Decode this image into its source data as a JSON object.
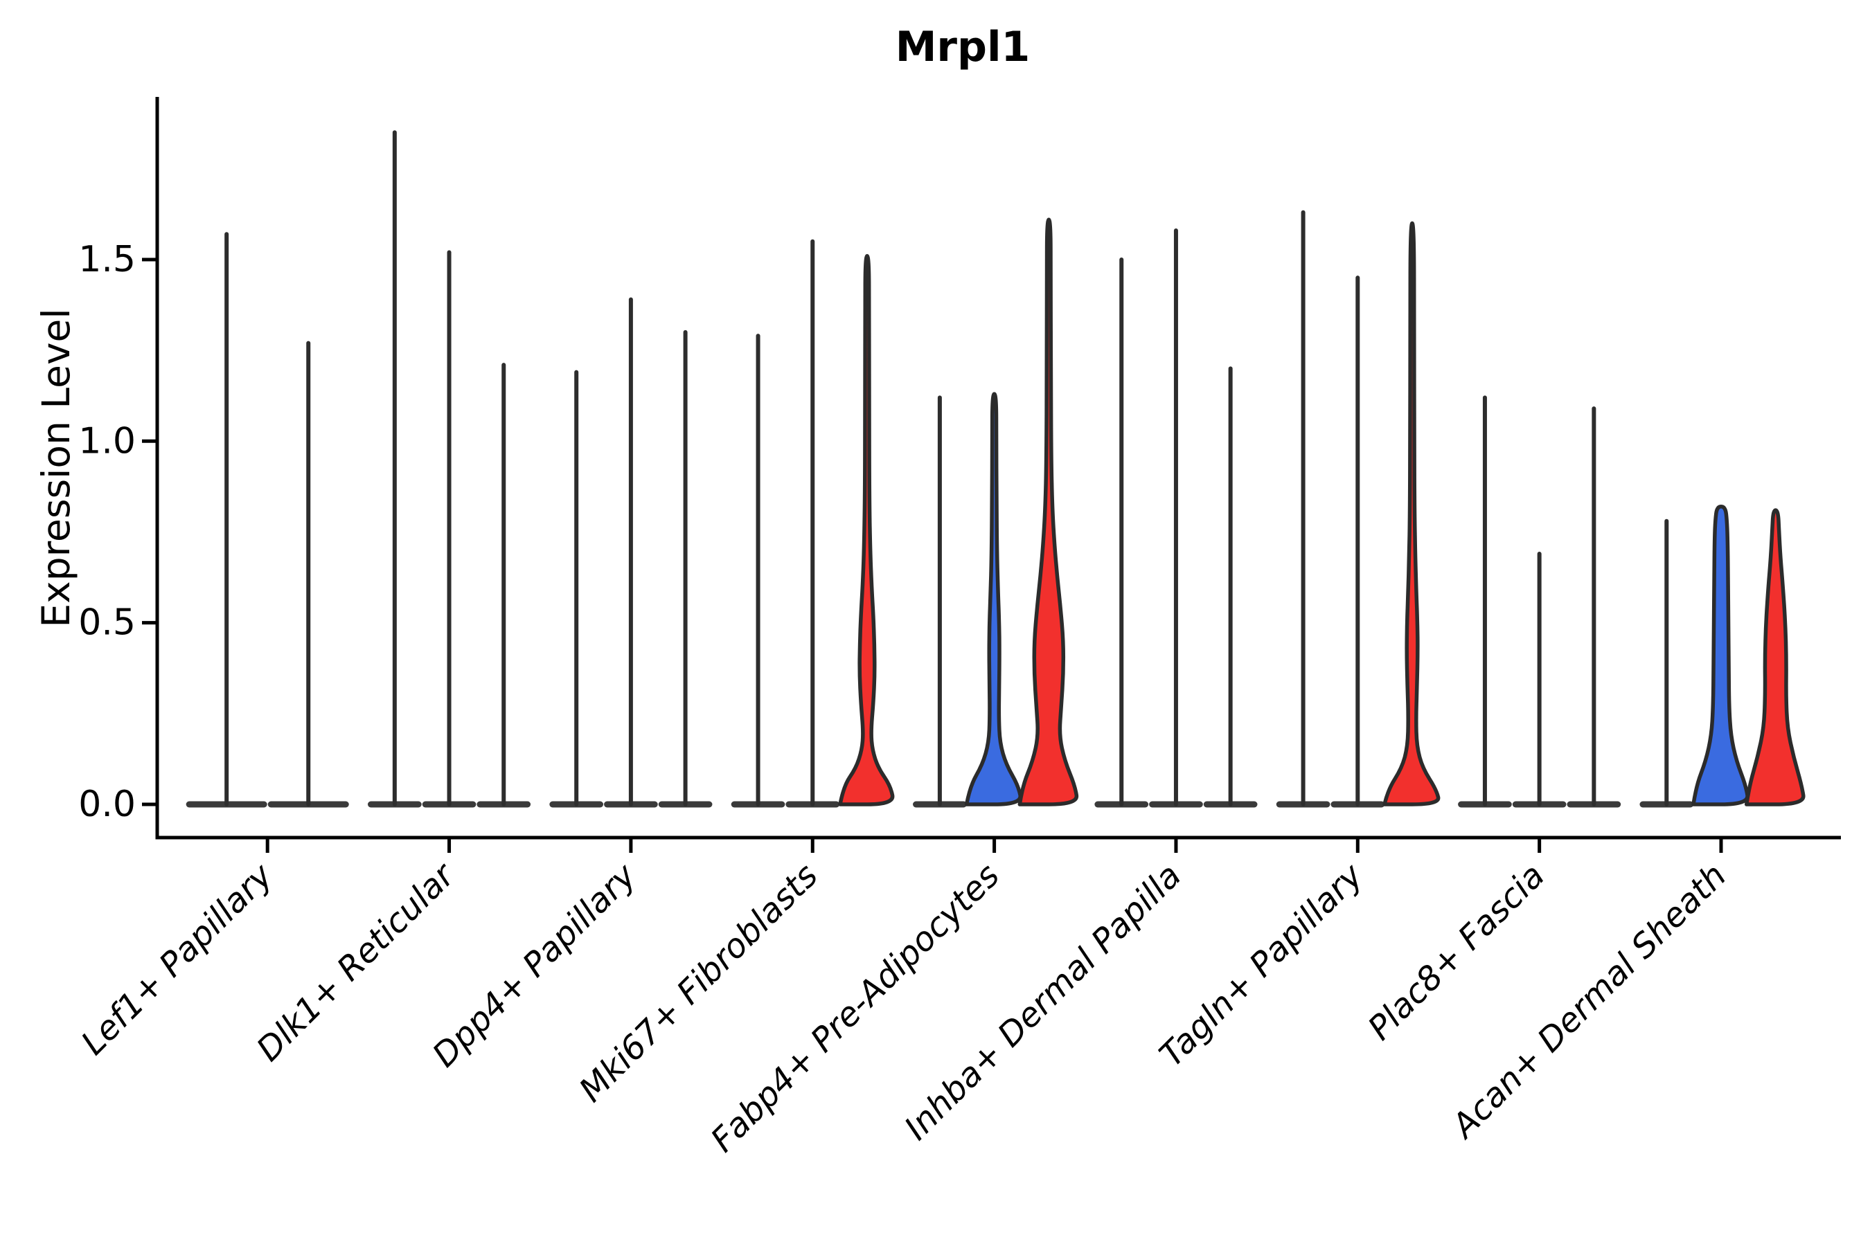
{
  "title": "Mrpl1",
  "y_axis": {
    "label": "Expression Level",
    "tick_labels": [
      "0.0",
      "0.5",
      "1.0",
      "1.5"
    ],
    "tick_values": [
      0.0,
      0.5,
      1.0,
      1.5
    ]
  },
  "x_axis": {
    "categories": [
      "Lef1+ Papillary",
      "Dlk1+ Reticular",
      "Dpp4+ Papillary",
      "Mki67+ Fibroblasts",
      "Fabp4+ Pre-Adipocytes",
      "Inhba+ Dermal Papilla",
      "Tagln+ Papillary",
      "Plac8+ Fascia",
      "Acan+ Dermal Sheath"
    ]
  },
  "colors": {
    "red_fill": "#F2302D",
    "blue_fill": "#3A6BE0",
    "violin_outline": "#2B2B2B",
    "spike": "#2D2D2D",
    "base_lens": "#3A3A3A",
    "axis": "#000000",
    "background": "#FFFFFF"
  },
  "chart_data": {
    "type": "violin",
    "title": "Mrpl1",
    "xlabel": "",
    "ylabel": "Expression Level",
    "ylim": [
      0,
      1.95
    ],
    "yticks": [
      0.0,
      0.5,
      1.0,
      1.5
    ],
    "ytick_labels": [
      "0.0",
      "0.5",
      "1.0",
      "1.5"
    ],
    "grid": false,
    "legend": "none",
    "categories": [
      "Lef1+ Papillary",
      "Dlk1+ Reticular",
      "Dpp4+ Papillary",
      "Mki67+ Fibroblasts",
      "Fabp4+ Pre-Adipocytes",
      "Inhba+ Dermal Papilla",
      "Tagln+ Papillary",
      "Plac8+ Fascia",
      "Acan+ Dermal Sheath"
    ],
    "note": "Each category holds 2-3 violins; 'spike' = near-zero-width distribution (all cells ~0) drawn as a thin vertical line with a flat base at 0; 'violin' = visible density body. 'max' = maximum expression value reached. 'profile' = [expression_value, half_width_px] pairs describing the density outline.",
    "groups": [
      {
        "category": "Lef1+ Papillary",
        "violins": [
          {
            "kind": "spike",
            "color": "none",
            "max": 1.57
          },
          {
            "kind": "spike",
            "color": "none",
            "max": 1.27
          }
        ]
      },
      {
        "category": "Dlk1+ Reticular",
        "violins": [
          {
            "kind": "spike",
            "color": "none",
            "max": 1.85
          },
          {
            "kind": "spike",
            "color": "none",
            "max": 1.52
          },
          {
            "kind": "spike",
            "color": "none",
            "max": 1.21
          }
        ]
      },
      {
        "category": "Dpp4+ Papillary",
        "violins": [
          {
            "kind": "spike",
            "color": "none",
            "max": 1.19
          },
          {
            "kind": "spike",
            "color": "none",
            "max": 1.39
          },
          {
            "kind": "spike",
            "color": "none",
            "max": 1.3
          }
        ]
      },
      {
        "category": "Mki67+ Fibroblasts",
        "violins": [
          {
            "kind": "spike",
            "color": "none",
            "max": 1.29
          },
          {
            "kind": "spike",
            "color": "none",
            "max": 1.55
          },
          {
            "kind": "violin",
            "color": "red",
            "max": 1.51,
            "profile": [
              [
                0,
                39
              ],
              [
                0.05,
                34
              ],
              [
                0.1,
                16
              ],
              [
                0.15,
                7.5
              ],
              [
                0.2,
                5.5
              ],
              [
                0.28,
                9
              ],
              [
                0.36,
                11
              ],
              [
                0.44,
                10.5
              ],
              [
                0.52,
                9
              ],
              [
                0.6,
                6.5
              ],
              [
                0.7,
                4.5
              ],
              [
                0.85,
                3.2
              ],
              [
                1.1,
                3
              ],
              [
                1.35,
                2.8
              ],
              [
                1.51,
                2.6
              ]
            ]
          }
        ]
      },
      {
        "category": "Fabp4+ Pre-Adipocytes",
        "violins": [
          {
            "kind": "spike",
            "color": "none",
            "max": 1.12
          },
          {
            "kind": "violin",
            "color": "blue",
            "max": 1.13,
            "profile": [
              [
                0,
                40
              ],
              [
                0.05,
                35
              ],
              [
                0.11,
                17
              ],
              [
                0.17,
                8
              ],
              [
                0.24,
                6.5
              ],
              [
                0.33,
                7
              ],
              [
                0.42,
                7.5
              ],
              [
                0.5,
                7
              ],
              [
                0.58,
                5.5
              ],
              [
                0.68,
                4
              ],
              [
                0.85,
                3.2
              ],
              [
                1.0,
                3
              ],
              [
                1.13,
                2.8
              ]
            ]
          },
          {
            "kind": "violin",
            "color": "red",
            "max": 1.61,
            "profile": [
              [
                0,
                42
              ],
              [
                0.05,
                38
              ],
              [
                0.12,
                23
              ],
              [
                0.19,
                15
              ],
              [
                0.27,
                18
              ],
              [
                0.36,
                21
              ],
              [
                0.45,
                21
              ],
              [
                0.54,
                17
              ],
              [
                0.63,
                12
              ],
              [
                0.72,
                8
              ],
              [
                0.82,
                5
              ],
              [
                0.95,
                3.5
              ],
              [
                1.2,
                3
              ],
              [
                1.45,
                2.8
              ],
              [
                1.61,
                2.6
              ]
            ]
          }
        ]
      },
      {
        "category": "Inhba+ Dermal Papilla",
        "violins": [
          {
            "kind": "spike",
            "color": "none",
            "max": 1.5
          },
          {
            "kind": "spike",
            "color": "none",
            "max": 1.58
          },
          {
            "kind": "spike",
            "color": "none",
            "max": 1.2
          }
        ]
      },
      {
        "category": "Tagln+ Papillary",
        "violins": [
          {
            "kind": "spike",
            "color": "none",
            "max": 1.63
          },
          {
            "kind": "spike",
            "color": "none",
            "max": 1.45
          },
          {
            "kind": "violin",
            "color": "red",
            "max": 1.6,
            "profile": [
              [
                0,
                40
              ],
              [
                0.04,
                35
              ],
              [
                0.1,
                15
              ],
              [
                0.16,
                6.5
              ],
              [
                0.24,
                5.5
              ],
              [
                0.33,
                7
              ],
              [
                0.42,
                8
              ],
              [
                0.5,
                7.5
              ],
              [
                0.58,
                6
              ],
              [
                0.68,
                4.5
              ],
              [
                0.8,
                3.4
              ],
              [
                1.0,
                3
              ],
              [
                1.3,
                2.8
              ],
              [
                1.6,
                2.6
              ]
            ]
          }
        ]
      },
      {
        "category": "Plac8+ Fascia",
        "violins": [
          {
            "kind": "spike",
            "color": "none",
            "max": 1.12
          },
          {
            "kind": "spike",
            "color": "none",
            "max": 0.69
          },
          {
            "kind": "spike",
            "color": "none",
            "max": 1.09
          }
        ]
      },
      {
        "category": "Acan+ Dermal Sheath",
        "violins": [
          {
            "kind": "spike",
            "color": "none",
            "max": 0.78
          },
          {
            "kind": "violin",
            "color": "blue",
            "max": 0.82,
            "profile": [
              [
                0,
                40
              ],
              [
                0.05,
                36
              ],
              [
                0.12,
                22
              ],
              [
                0.19,
                14
              ],
              [
                0.27,
                11.5
              ],
              [
                0.38,
                11
              ],
              [
                0.5,
                10.5
              ],
              [
                0.62,
                10
              ],
              [
                0.72,
                9.5
              ],
              [
                0.78,
                8.5
              ],
              [
                0.82,
                6
              ]
            ]
          },
          {
            "kind": "violin",
            "color": "red",
            "max": 0.81,
            "profile": [
              [
                0,
                42
              ],
              [
                0.05,
                38
              ],
              [
                0.13,
                26
              ],
              [
                0.21,
                17
              ],
              [
                0.3,
                15
              ],
              [
                0.4,
                15.5
              ],
              [
                0.5,
                14
              ],
              [
                0.6,
                10.5
              ],
              [
                0.68,
                7
              ],
              [
                0.75,
                5
              ],
              [
                0.81,
                3.5
              ]
            ]
          }
        ]
      }
    ]
  }
}
